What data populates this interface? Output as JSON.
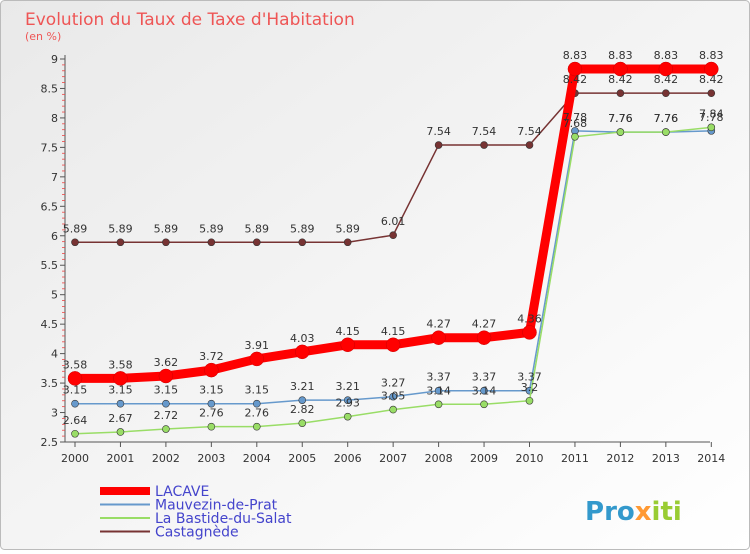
{
  "chart_data": {
    "type": "line",
    "title": "Evolution du Taux de Taxe d'Habitation",
    "subtitle": "(en %)",
    "xlabel": "",
    "ylabel": "",
    "ylim": [
      2.5,
      9
    ],
    "yticks": [
      "2.5",
      "3",
      "3.5",
      "4",
      "4.5",
      "5",
      "5.5",
      "6",
      "6.5",
      "7",
      "7.5",
      "8",
      "8.5",
      "9"
    ],
    "grid": false,
    "legend_position": "bottom-left",
    "categories": [
      "2000",
      "2001",
      "2002",
      "2003",
      "2004",
      "2005",
      "2006",
      "2007",
      "2008",
      "2009",
      "2010",
      "2011",
      "2012",
      "2013",
      "2014"
    ],
    "series": [
      {
        "name": "LACAVE",
        "color": "#ff0000",
        "values": [
          3.58,
          3.58,
          3.62,
          3.72,
          3.91,
          4.03,
          4.15,
          4.15,
          4.27,
          4.27,
          4.36,
          8.83,
          8.83,
          8.83,
          8.83
        ],
        "labels": [
          "3.58",
          "3.58",
          "3.62",
          "3.72",
          "3.91",
          "4.03",
          "4.15",
          "4.15",
          "4.27",
          "4.27",
          "4.36",
          "8.83",
          "8.83",
          "8.83",
          "8.83"
        ]
      },
      {
        "name": "Mauvezin-de-Prat",
        "color": "#6699cc",
        "values": [
          3.15,
          3.15,
          3.15,
          3.15,
          3.15,
          3.21,
          3.21,
          3.27,
          3.37,
          3.37,
          3.37,
          7.78,
          7.76,
          7.76,
          7.78
        ],
        "labels": [
          "3.15",
          "3.15",
          "3.15",
          "3.15",
          "3.15",
          "3.21",
          "3.21",
          "3.27",
          "3.37",
          "3.37",
          "3.37",
          "7.78",
          "7.76",
          "7.76",
          "7.78"
        ]
      },
      {
        "name": "La Bastide-du-Salat",
        "color": "#99dd66",
        "values": [
          2.64,
          2.67,
          2.72,
          2.76,
          2.76,
          2.82,
          2.93,
          3.05,
          3.14,
          3.14,
          3.2,
          7.68,
          7.76,
          7.76,
          7.84
        ],
        "labels": [
          "2.64",
          "2.67",
          "2.72",
          "2.76",
          "2.76",
          "2.82",
          "2.93",
          "3.05",
          "3.14",
          "3.14",
          "3.2",
          "7.68",
          "7.76",
          "7.76",
          "7.84"
        ]
      },
      {
        "name": "Castagnède",
        "color": "#773333",
        "values": [
          5.89,
          5.89,
          5.89,
          5.89,
          5.89,
          5.89,
          5.89,
          6.01,
          7.54,
          7.54,
          7.54,
          8.42,
          8.42,
          8.42,
          8.42
        ],
        "labels": [
          "5.89",
          "5.89",
          "5.89",
          "5.89",
          "5.89",
          "5.89",
          "5.89",
          "6.01",
          "7.54",
          "7.54",
          "7.54",
          "8.42",
          "8.42",
          "8.42",
          "8.42"
        ]
      }
    ]
  },
  "logo": {
    "text": "Proxiti",
    "colors": [
      "#3399cc",
      "#ff9933",
      "#99cc33"
    ]
  }
}
